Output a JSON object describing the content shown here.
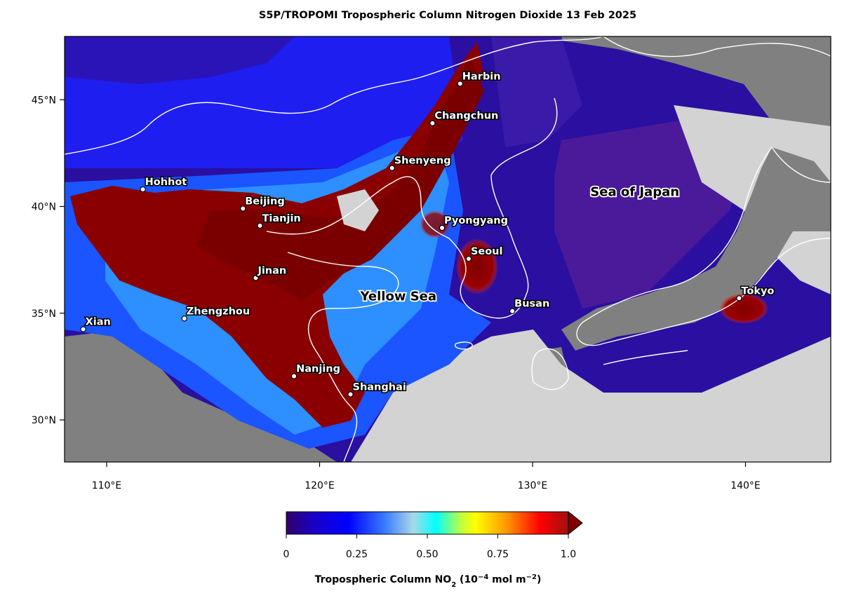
{
  "title": "S5P/TROPOMI Tropospheric Column Nitrogen Dioxide  13 Feb 2025",
  "map": {
    "x_ticks": [
      {
        "label": "110°E",
        "lon": 110
      },
      {
        "label": "120°E",
        "lon": 120
      },
      {
        "label": "130°E",
        "lon": 130
      },
      {
        "label": "140°E",
        "lon": 140
      }
    ],
    "y_ticks": [
      {
        "label": "45°N",
        "lat": 45
      },
      {
        "label": "40°N",
        "lat": 40
      },
      {
        "label": "35°N",
        "lat": 35
      },
      {
        "label": "30°N",
        "lat": 30
      }
    ],
    "cities": [
      {
        "name": "Harbin",
        "lon": 126.6,
        "lat": 45.75
      },
      {
        "name": "Changchun",
        "lon": 125.3,
        "lat": 43.9
      },
      {
        "name": "Shenyeng",
        "lon": 123.4,
        "lat": 41.8
      },
      {
        "name": "Hohhot",
        "lon": 111.7,
        "lat": 40.8
      },
      {
        "name": "Beijing",
        "lon": 116.4,
        "lat": 39.9
      },
      {
        "name": "Tianjin",
        "lon": 117.2,
        "lat": 39.1
      },
      {
        "name": "Pyongyang",
        "lon": 125.75,
        "lat": 39.0
      },
      {
        "name": "Seoul",
        "lon": 127.0,
        "lat": 37.55
      },
      {
        "name": "Jinan",
        "lon": 117.0,
        "lat": 36.65
      },
      {
        "name": "Zhengzhou",
        "lon": 113.65,
        "lat": 34.75
      },
      {
        "name": "Xian",
        "lon": 108.9,
        "lat": 34.25
      },
      {
        "name": "Busan",
        "lon": 129.05,
        "lat": 35.1
      },
      {
        "name": "Tokyo",
        "lon": 139.7,
        "lat": 35.7
      },
      {
        "name": "Nanjing",
        "lon": 118.8,
        "lat": 32.05
      },
      {
        "name": "Shanghai",
        "lon": 121.45,
        "lat": 31.2
      }
    ],
    "seas": [
      {
        "name": "Yellow Sea",
        "lon": 123.7,
        "lat": 35.6
      },
      {
        "name": "Sea of Japan",
        "lon": 134.8,
        "lat": 40.5
      }
    ],
    "colors": {
      "land_no_data": "#808080",
      "sea_no_data": "#d3d3d3",
      "coastline": "#ffffff"
    }
  },
  "colorbar": {
    "ticks": [
      "0",
      "0.25",
      "0.50",
      "0.75",
      "1.0"
    ],
    "label_prefix": "Tropospheric Column NO",
    "label_sub": "2",
    "label_suffix_1": " (10",
    "label_sup": "−4",
    "label_suffix_2": " mol m",
    "label_sup2": "−2",
    "label_suffix_3": ")",
    "range": [
      0,
      1.0
    ],
    "extend": "max"
  }
}
